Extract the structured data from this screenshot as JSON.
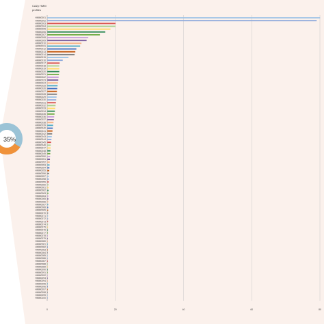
{
  "header": {
    "line1": "CAZy HMM",
    "line2": "profiles"
  },
  "donut": {
    "label": "35%",
    "value": 35,
    "color": "#f0923a",
    "rest_color": "#9bc3d6"
  },
  "colors": {
    "panel": "#fbf1ec",
    "grid": "#c8c8c8",
    "palette": [
      "#7b5fa0",
      "#4472c4",
      "#9dc3e6",
      "#a9d18e",
      "#70ad47",
      "#f4b183",
      "#c55a11",
      "#8faadc",
      "#ffd966",
      "#c9a0dc",
      "#4bacc6",
      "#808080",
      "#d9534f",
      "#2e8b57"
    ]
  },
  "chart_data": {
    "type": "bar",
    "orientation": "horizontal",
    "title": "",
    "xlabel": "",
    "ylabel": "",
    "xlim": [
      0,
      80
    ],
    "x_ticks": [
      "0",
      "20",
      "40",
      "60",
      "80"
    ],
    "grid": true,
    "legend": "none",
    "categories": [
      "HMM0001",
      "HMM0002",
      "HMM0003",
      "HMM0004",
      "HMM0005",
      "HMM0006",
      "HMM0007",
      "HMM0008",
      "HMM0009",
      "HMM0010",
      "HMM0011",
      "HMM0012",
      "HMM0013",
      "HMM0014",
      "HMM0015",
      "HMM0016",
      "HMM0017",
      "HMM0018",
      "HMM0019",
      "HMM0020",
      "HMM0021",
      "HMM0022",
      "HMM0023",
      "HMM0024",
      "HMM0025",
      "HMM0026",
      "HMM0027",
      "HMM0028",
      "HMM0029",
      "HMM0030",
      "HMM0031",
      "HMM0032",
      "HMM0033",
      "HMM0034",
      "HMM0035",
      "HMM0036",
      "HMM0037",
      "HMM0038",
      "HMM0039",
      "HMM0040",
      "HMM0041",
      "HMM0042",
      "HMM0043",
      "HMM0044",
      "HMM0045",
      "HMM0046",
      "HMM0047",
      "HMM0048",
      "HMM0049",
      "HMM0050",
      "HMM0051",
      "HMM0052",
      "HMM0053",
      "HMM0054",
      "HMM0055",
      "HMM0056",
      "HMM0057",
      "HMM0058",
      "HMM0059",
      "HMM0060",
      "HMM0061",
      "HMM0062",
      "HMM0063",
      "HMM0064",
      "HMM0065",
      "HMM0066",
      "HMM0067",
      "HMM0068",
      "HMM0069",
      "HMM0070",
      "HMM0071",
      "HMM0072",
      "HMM0073",
      "HMM0074",
      "HMM0075",
      "HMM0076",
      "HMM0077",
      "HMM0078",
      "HMM0079",
      "HMM0080",
      "HMM0081",
      "HMM0082",
      "HMM0083",
      "HMM0084",
      "HMM0085",
      "HMM0086",
      "HMM0087",
      "HMM0088",
      "HMM0089",
      "HMM0090",
      "HMM0091",
      "HMM0092",
      "HMM0093",
      "HMM0094",
      "HMM0095",
      "HMM0096",
      "HMM0097",
      "HMM0098",
      "HMM0099",
      "HMM0100"
    ],
    "values": [
      80,
      79,
      20,
      20,
      18.5,
      17,
      15.4,
      12,
      11.5,
      10,
      9.6,
      8.5,
      8.2,
      8,
      6.2,
      4.5,
      3.6,
      3.5,
      3.5,
      3.5,
      3.4,
      3.3,
      3.2,
      3.1,
      3.0,
      2.9,
      2.8,
      2.8,
      2.7,
      2.6,
      2.5,
      2.4,
      2.3,
      2.2,
      2.1,
      2.0,
      1.9,
      1.8,
      1.7,
      1.6,
      1.5,
      1.4,
      1.3,
      1.2,
      1.1,
      1.0,
      0.95,
      0.9,
      0.85,
      0.8,
      0.75,
      0.7,
      0.65,
      0.6,
      0.55,
      0.5,
      0.45,
      0.42,
      0.4,
      0.38,
      0.36,
      0.34,
      0.32,
      0.3,
      0.28,
      0.26,
      0.25,
      0.24,
      0.23,
      0.22,
      0.21,
      0.2,
      0.19,
      0.18,
      0.17,
      0.16,
      0.15,
      0.14,
      0.13,
      0.12,
      0.11,
      0.1,
      0.1,
      0.1,
      0.09,
      0.09,
      0.08,
      0.08,
      0.07,
      0.07,
      0.06,
      0.06,
      0.05,
      0.05,
      0.05,
      0.04,
      0.04,
      0.03,
      0.03,
      0.02
    ]
  }
}
